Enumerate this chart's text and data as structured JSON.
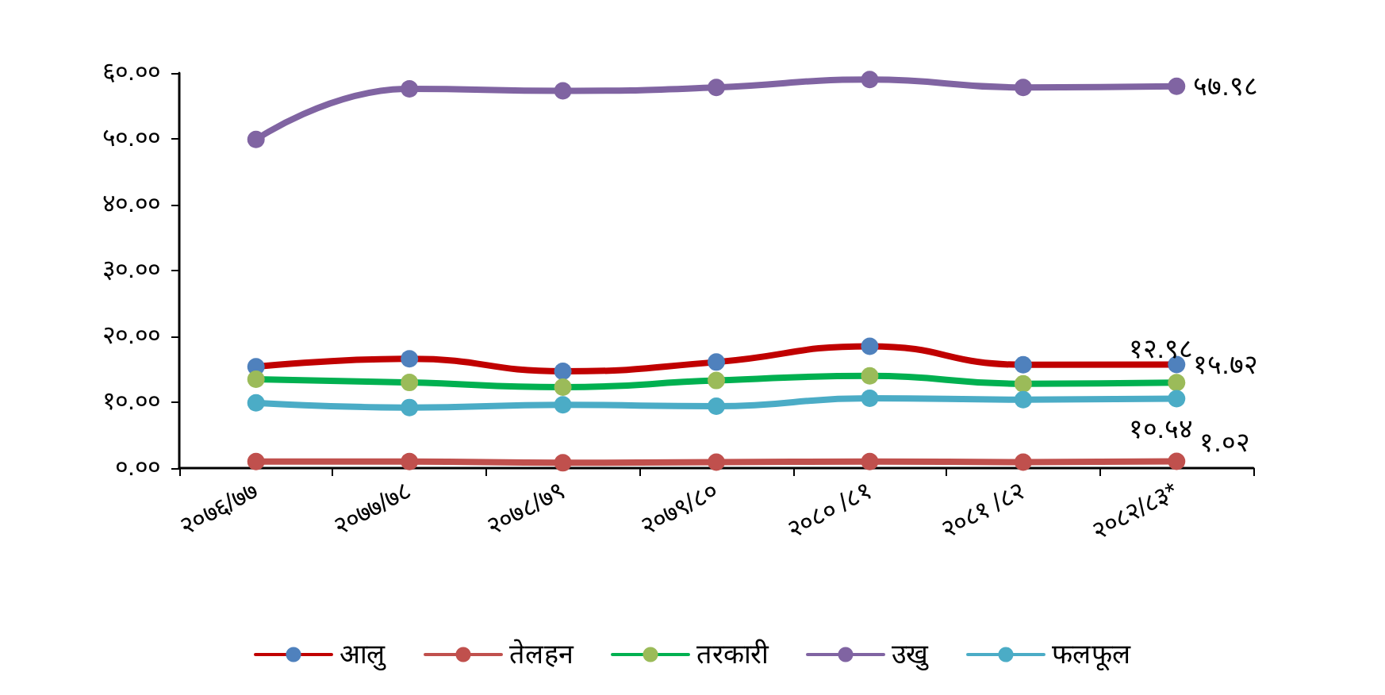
{
  "chart_data": {
    "type": "line",
    "categories": [
      "२०७६/७७",
      "२०७७/७८",
      "२०७८/७९",
      "२०७९/८०",
      "२०८० /८१",
      "२०८१ /८२",
      "२०८२/८३*"
    ],
    "series": [
      {
        "name": "आलु",
        "color": "#c00000",
        "colors": [
          "#4f81bd",
          "#4f81bd",
          "#4f81bd",
          "#4f81bd",
          "#4f81bd",
          "#4f81bd",
          "#4f81bd"
        ],
        "values": [
          15.4,
          16.6,
          14.7,
          16.1,
          18.5,
          15.7,
          15.72
        ],
        "value_labels": [
          null,
          null,
          null,
          null,
          null,
          null,
          "१५.७२"
        ]
      },
      {
        "name": "तेलहन",
        "color": "#c0504d",
        "colors": [
          "#c0504d",
          "#c0504d",
          "#c0504d",
          "#c0504d",
          "#c0504d",
          "#c0504d",
          "#c0504d"
        ],
        "values": [
          1.0,
          1.0,
          0.8,
          0.9,
          1.0,
          0.9,
          1.02
        ],
        "value_labels": [
          null,
          null,
          null,
          null,
          null,
          null,
          "१.०२"
        ]
      },
      {
        "name": "तरकारी",
        "color": "#00b050",
        "colors": [
          "#9bbb59",
          "#9bbb59",
          "#9bbb59",
          "#9bbb59",
          "#9bbb59",
          "#9bbb59",
          "#9bbb59"
        ],
        "values": [
          13.5,
          13.0,
          12.3,
          13.3,
          14.0,
          12.8,
          12.98
        ],
        "value_labels": [
          null,
          null,
          null,
          null,
          null,
          null,
          "१२.९८"
        ]
      },
      {
        "name": "उखु",
        "color": "#8064a2",
        "colors": [
          "#8064a2",
          "#8064a2",
          "#8064a2",
          "#8064a2",
          "#8064a2",
          "#8064a2",
          "#8064a2"
        ],
        "values": [
          49.9,
          57.6,
          57.3,
          57.8,
          59.0,
          57.8,
          57.98
        ],
        "value_labels": [
          null,
          null,
          null,
          null,
          null,
          null,
          "५७.९८"
        ]
      },
      {
        "name": "फलफूल",
        "color": "#4bacc6",
        "colors": [
          "#4bacc6",
          "#4bacc6",
          "#4bacc6",
          "#4bacc6",
          "#4bacc6",
          "#4bacc6",
          "#4bacc6"
        ],
        "values": [
          9.9,
          9.2,
          9.6,
          9.4,
          10.6,
          10.4,
          10.54
        ],
        "value_labels": [
          null,
          null,
          null,
          null,
          null,
          null,
          "१०.५४"
        ]
      }
    ],
    "ylim": [
      0,
      60
    ],
    "yticks": [
      {
        "value": 0,
        "label": "०.००"
      },
      {
        "value": 10,
        "label": "१०.००"
      },
      {
        "value": 20,
        "label": "२०.००"
      },
      {
        "value": 30,
        "label": "३०.००"
      },
      {
        "value": 40,
        "label": "४०.००"
      },
      {
        "value": 50,
        "label": "५०.००"
      },
      {
        "value": 60,
        "label": "६०.००"
      }
    ],
    "grid": false,
    "legend": "bottom",
    "marker": "circle",
    "line_style": "solid"
  }
}
